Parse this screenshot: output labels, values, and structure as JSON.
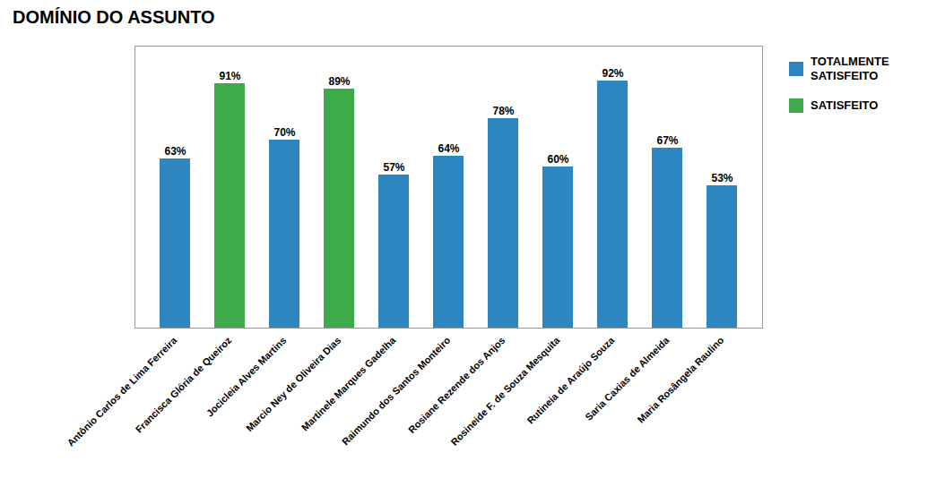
{
  "chart_data": {
    "type": "bar",
    "title": "DOMÍNIO DO ASSUNTO",
    "categories": [
      "Antônio Carlos de Lima Ferreira",
      "Francisca Glória de Queiroz",
      "Jocicleia Alves Martins",
      "Marcio Ney de Oliveira Dias",
      "Martinele Marques Gadelha",
      "Raimundo dos Santos Monteiro",
      "Rosiane Rezende dos Anjos",
      "Rosineide F. de Souza Mesquita",
      "Rutineia de Araújo Souza",
      "Saria Caxias de Almeida",
      "Maria Rosângela Raulino"
    ],
    "series": [
      {
        "name": "TOTALMENTE\nSATISFEITO",
        "color": "#2E86C1",
        "values": [
          63,
          null,
          70,
          null,
          57,
          64,
          78,
          60,
          92,
          67,
          53
        ],
        "value_labels": [
          "63%",
          null,
          "70%",
          null,
          "57%",
          "64%",
          "78%",
          "60%",
          "92%",
          "67%",
          "53%"
        ]
      },
      {
        "name": "SATISFEITO",
        "color": "#3DAA4C",
        "values": [
          null,
          91,
          null,
          89,
          null,
          null,
          null,
          null,
          null,
          null,
          null
        ],
        "value_labels": [
          null,
          "91%",
          null,
          "89%",
          null,
          null,
          null,
          null,
          null,
          null,
          null
        ]
      }
    ],
    "ylim": [
      0,
      105
    ],
    "grid": false,
    "legend": "right",
    "data_labels": true,
    "tick_labels": "x"
  }
}
